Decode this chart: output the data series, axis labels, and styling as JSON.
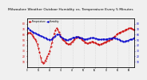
{
  "title": "Milwaukee Weather Outdoor Humidity vs. Temperature Every 5 Minutes",
  "title_fontsize": 3.2,
  "bg_color": "#f0f0f0",
  "plot_bg_color": "#f0f0f0",
  "grid_color": "#c8c8c8",
  "series": [
    {
      "label": "Temperature",
      "color": "#cc0000",
      "x": [
        0,
        1,
        2,
        3,
        4,
        5,
        6,
        7,
        8,
        9,
        10,
        11,
        12,
        13,
        14,
        15,
        16,
        17,
        18,
        19,
        20,
        21,
        22,
        23,
        24,
        25,
        26,
        27,
        28,
        29,
        30,
        31,
        32,
        33,
        34,
        35,
        36,
        37,
        38,
        39,
        40,
        41,
        42,
        43,
        44,
        45,
        46,
        47,
        48,
        49,
        50,
        51,
        52,
        53,
        54,
        55,
        56,
        57,
        58,
        59,
        60,
        61,
        62,
        63,
        64,
        65,
        66,
        67,
        68,
        69,
        70,
        71,
        72,
        73,
        74,
        75,
        76,
        77,
        78,
        79,
        80,
        81,
        82,
        83,
        84,
        85,
        86,
        87,
        88,
        89,
        90,
        91,
        92,
        93,
        94,
        95
      ],
      "y": [
        62,
        63,
        64,
        63,
        60,
        58,
        55,
        52,
        48,
        42,
        35,
        28,
        18,
        10,
        8,
        9,
        12,
        16,
        20,
        25,
        30,
        38,
        46,
        54,
        62,
        68,
        72,
        70,
        65,
        60,
        56,
        52,
        50,
        48,
        46,
        44,
        43,
        42,
        43,
        45,
        47,
        50,
        52,
        54,
        55,
        56,
        55,
        54,
        52,
        50,
        48,
        46,
        45,
        44,
        44,
        45,
        46,
        47,
        47,
        46,
        45,
        44,
        43,
        42,
        41,
        42,
        43,
        44,
        45,
        46,
        47,
        48,
        49,
        50,
        51,
        52,
        54,
        56,
        58,
        60,
        62,
        63,
        64,
        65,
        66,
        67,
        68,
        69,
        70,
        71,
        72,
        72,
        72,
        71,
        70,
        69
      ]
    },
    {
      "label": "Humidity",
      "color": "#0000cc",
      "x": [
        0,
        1,
        2,
        3,
        4,
        5,
        6,
        7,
        8,
        9,
        10,
        11,
        12,
        13,
        14,
        15,
        16,
        17,
        18,
        19,
        20,
        21,
        22,
        23,
        24,
        25,
        26,
        27,
        28,
        29,
        30,
        31,
        32,
        33,
        34,
        35,
        36,
        37,
        38,
        39,
        40,
        41,
        42,
        43,
        44,
        45,
        46,
        47,
        48,
        49,
        50,
        51,
        52,
        53,
        54,
        55,
        56,
        57,
        58,
        59,
        60,
        61,
        62,
        63,
        64,
        65,
        66,
        67,
        68,
        69,
        70,
        71,
        72,
        73,
        74,
        75,
        76,
        77,
        78,
        79,
        80,
        81,
        82,
        83,
        84,
        85,
        86,
        87,
        88,
        89,
        90,
        91,
        92,
        93,
        94,
        95
      ],
      "y": [
        72,
        72,
        70,
        68,
        66,
        65,
        64,
        63,
        62,
        61,
        60,
        59,
        58,
        57,
        56,
        55,
        54,
        53,
        52,
        51,
        50,
        51,
        52,
        54,
        56,
        58,
        60,
        61,
        60,
        58,
        56,
        54,
        53,
        52,
        51,
        50,
        50,
        51,
        52,
        53,
        54,
        55,
        55,
        56,
        56,
        56,
        55,
        54,
        54,
        53,
        52,
        52,
        52,
        52,
        53,
        53,
        54,
        54,
        54,
        54,
        53,
        53,
        52,
        52,
        51,
        51,
        51,
        52,
        52,
        52,
        52,
        52,
        53,
        53,
        53,
        53,
        54,
        54,
        53,
        53,
        52,
        51,
        50,
        49,
        48,
        47,
        47,
        48,
        48,
        49,
        50,
        51,
        51,
        52,
        53,
        54
      ]
    }
  ],
  "ylim_left": [
    0,
    90
  ],
  "ylim_right": [
    0,
    90
  ],
  "yticks_left": [
    10,
    20,
    30,
    40,
    50,
    60,
    70,
    80
  ],
  "yticks_right": [
    10,
    20,
    30,
    40,
    50,
    60,
    70,
    80
  ],
  "xlim": [
    0,
    95
  ],
  "grid_x_interval": 5,
  "linestyle": "--",
  "linewidth": 0.6,
  "markersize": 1.0,
  "right_axis_color": "#0000cc",
  "left_axis_color": "#cc0000"
}
